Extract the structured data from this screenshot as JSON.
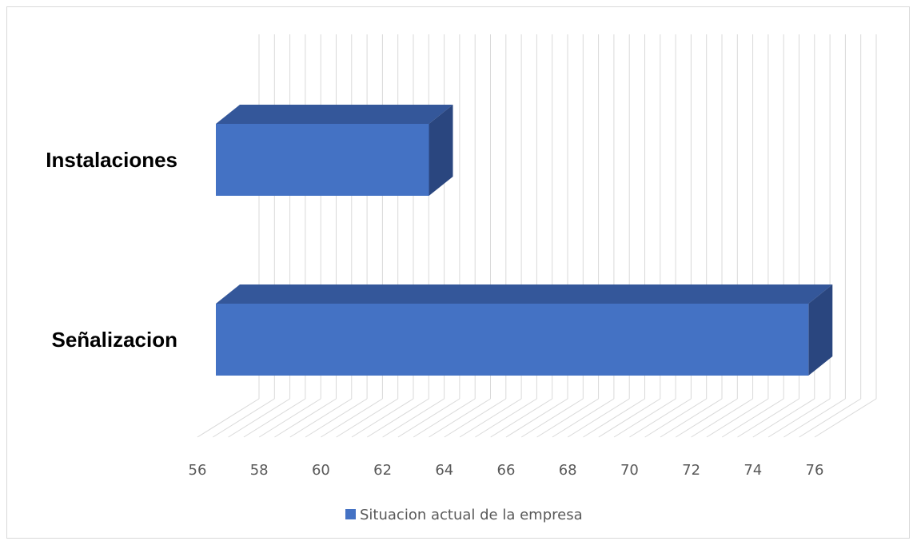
{
  "chart_data": {
    "type": "bar",
    "orientation": "horizontal",
    "style": "3d",
    "categories": [
      "Instalaciones",
      "Señalizacion"
    ],
    "series": [
      {
        "name": "Situacion actual de la empresa",
        "values": [
          63.5,
          75.8
        ]
      }
    ],
    "xlim": [
      56,
      76
    ],
    "xticks": [
      56,
      58,
      60,
      62,
      64,
      66,
      68,
      70,
      72,
      74,
      76
    ],
    "xtick_labels": [
      "56",
      "58",
      "60",
      "62",
      "64",
      "66",
      "68",
      "70",
      "72",
      "74",
      "76"
    ],
    "title": "",
    "xlabel": "",
    "ylabel": "",
    "grid": true,
    "legend_position": "bottom",
    "colors": {
      "bar_front": "#4472c4",
      "bar_top": "#34579a",
      "bar_side": "#2a467f",
      "grid": "#d9d9d9",
      "tick_text": "#595959",
      "category_text": "#000000"
    }
  }
}
